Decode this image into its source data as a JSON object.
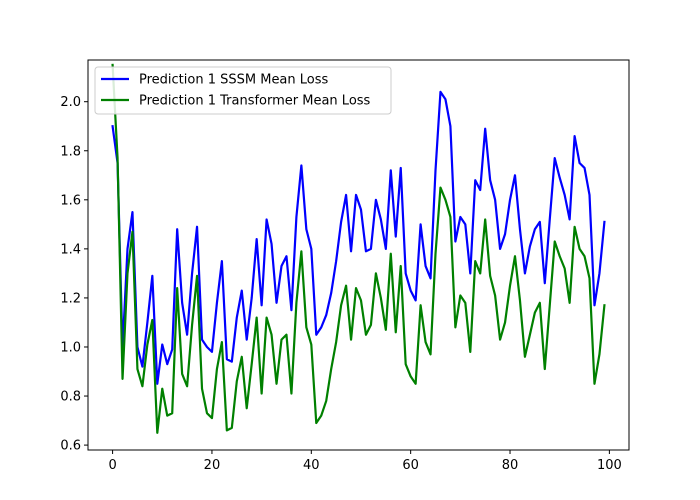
{
  "chart_data": {
    "type": "line",
    "title": "",
    "xlabel": "",
    "ylabel": "",
    "xlim": [
      -4.95,
      103.95
    ],
    "ylim": [
      0.58,
      2.17
    ],
    "x_ticks": [
      0,
      20,
      40,
      60,
      80,
      100
    ],
    "y_ticks": [
      0.6,
      0.8,
      1.0,
      1.2,
      1.4,
      1.6,
      1.8,
      2.0
    ],
    "x_tick_labels": [
      "0",
      "20",
      "40",
      "60",
      "80",
      "100"
    ],
    "y_tick_labels": [
      "0.6",
      "0.8",
      "1.0",
      "1.2",
      "1.4",
      "1.6",
      "1.8",
      "2.0"
    ],
    "grid": false,
    "legend_position": "top-left",
    "series": [
      {
        "name": "Prediction 1 SSSM Mean Loss",
        "color": "#0000ff",
        "values": [
          1.9,
          1.75,
          0.99,
          1.4,
          1.55,
          1.0,
          0.92,
          1.1,
          1.29,
          0.85,
          1.01,
          0.93,
          0.99,
          1.48,
          1.18,
          1.05,
          1.3,
          1.49,
          1.03,
          1.0,
          0.98,
          1.18,
          1.35,
          0.95,
          0.94,
          1.12,
          1.23,
          1.03,
          1.2,
          1.44,
          1.17,
          1.52,
          1.42,
          1.18,
          1.33,
          1.37,
          1.15,
          1.53,
          1.74,
          1.48,
          1.4,
          1.05,
          1.08,
          1.13,
          1.22,
          1.35,
          1.51,
          1.62,
          1.39,
          1.62,
          1.56,
          1.39,
          1.4,
          1.6,
          1.52,
          1.4,
          1.72,
          1.45,
          1.73,
          1.3,
          1.23,
          1.19,
          1.5,
          1.33,
          1.28,
          1.72,
          2.04,
          2.01,
          1.9,
          1.43,
          1.53,
          1.5,
          1.3,
          1.68,
          1.64,
          1.89,
          1.68,
          1.6,
          1.4,
          1.46,
          1.6,
          1.7,
          1.48,
          1.3,
          1.41,
          1.48,
          1.51,
          1.26,
          1.52,
          1.77,
          1.69,
          1.62,
          1.52,
          1.86,
          1.75,
          1.73,
          1.62,
          1.17,
          1.3,
          1.51
        ]
      },
      {
        "name": "Prediction 1 Transformer Mean Loss",
        "color": "#008000",
        "values": [
          2.15,
          1.77,
          0.87,
          1.3,
          1.47,
          0.91,
          0.84,
          1.01,
          1.11,
          0.65,
          0.83,
          0.72,
          0.73,
          1.24,
          0.89,
          0.84,
          1.09,
          1.29,
          0.83,
          0.73,
          0.71,
          0.91,
          1.02,
          0.66,
          0.67,
          0.86,
          0.96,
          0.75,
          0.93,
          1.12,
          0.81,
          1.12,
          1.05,
          0.85,
          1.03,
          1.05,
          0.81,
          1.18,
          1.39,
          1.08,
          1.01,
          0.69,
          0.72,
          0.78,
          0.91,
          1.02,
          1.17,
          1.25,
          1.03,
          1.24,
          1.19,
          1.05,
          1.09,
          1.3,
          1.2,
          1.07,
          1.38,
          1.06,
          1.33,
          0.93,
          0.88,
          0.85,
          1.17,
          1.02,
          0.97,
          1.38,
          1.65,
          1.6,
          1.53,
          1.08,
          1.21,
          1.18,
          0.98,
          1.35,
          1.3,
          1.52,
          1.29,
          1.21,
          1.03,
          1.1,
          1.25,
          1.37,
          1.19,
          0.96,
          1.05,
          1.14,
          1.18,
          0.91,
          1.17,
          1.43,
          1.37,
          1.32,
          1.18,
          1.49,
          1.4,
          1.37,
          1.28,
          0.85,
          0.97,
          1.17
        ]
      }
    ]
  }
}
